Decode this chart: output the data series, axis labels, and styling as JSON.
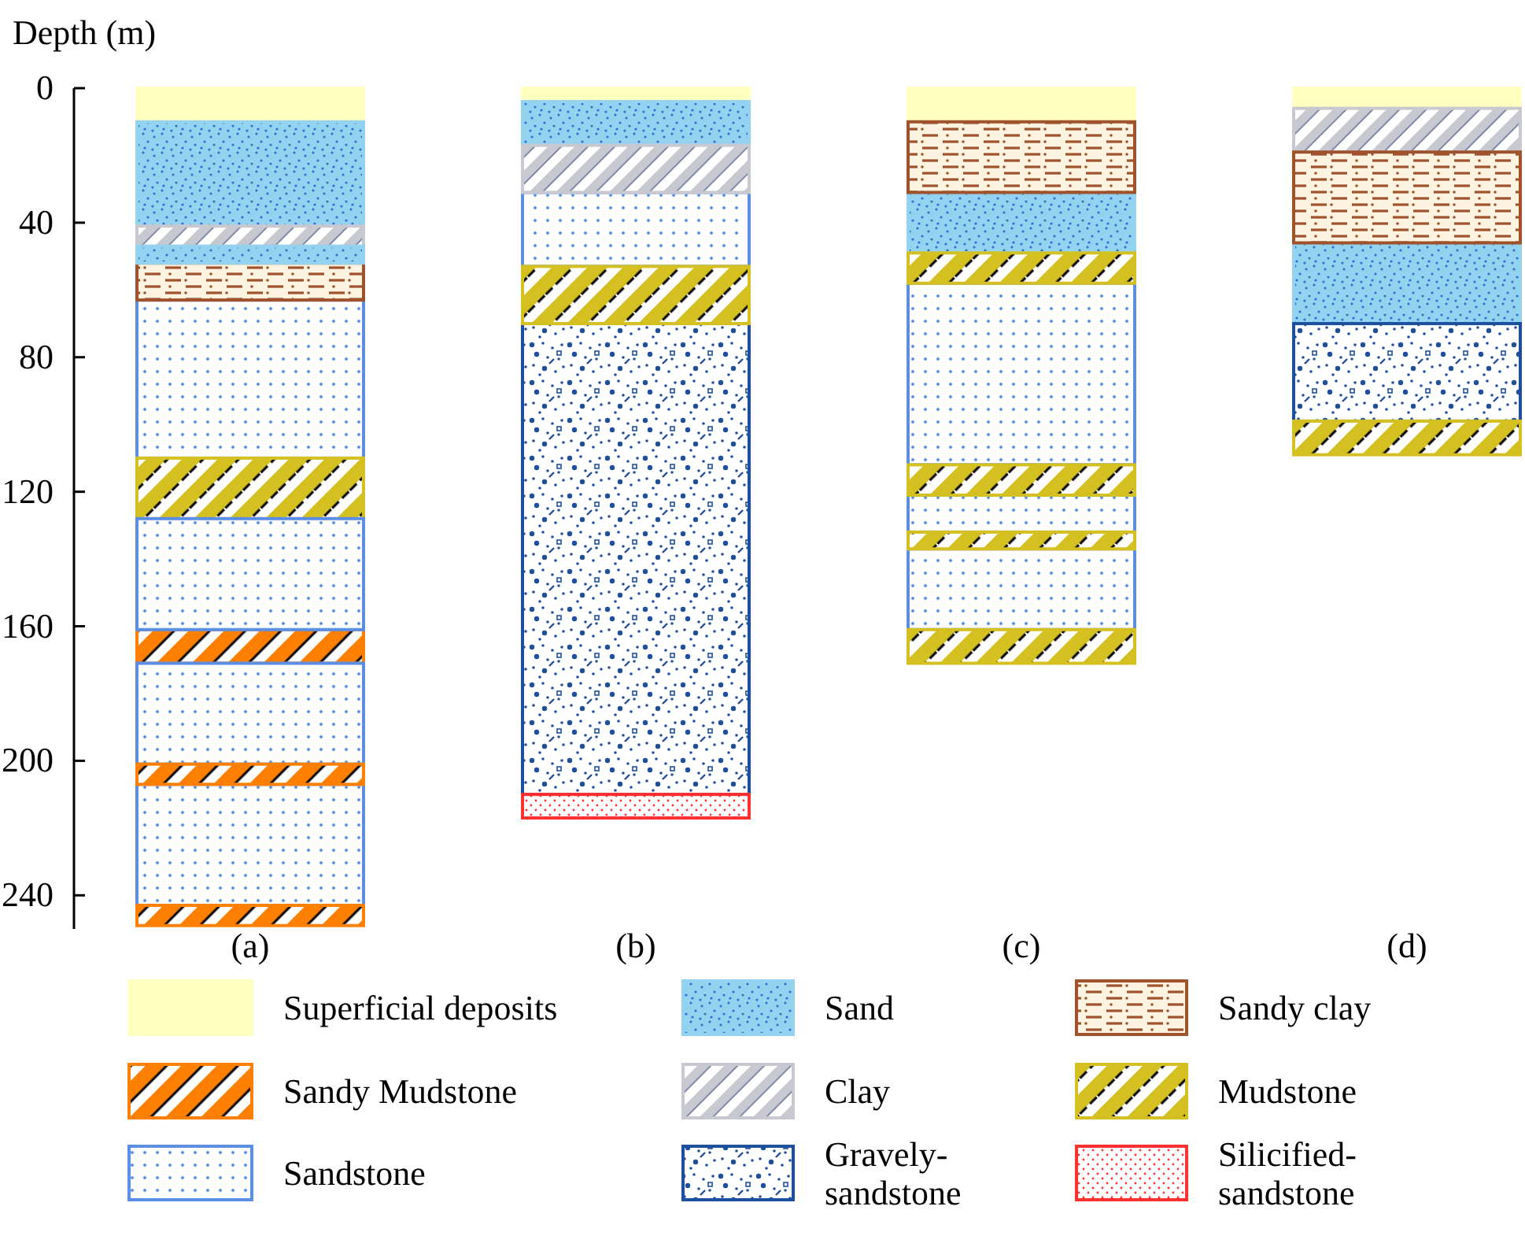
{
  "chart_data": {
    "type": "bar",
    "ylabel": "Depth (m)",
    "categories": [
      "(a)",
      "(b)",
      "(c)",
      "(d)"
    ],
    "ylim": [
      250,
      0
    ],
    "yticks": [
      0,
      40,
      80,
      120,
      160,
      200,
      240
    ],
    "legend": "bottom",
    "series": [
      {
        "name": "Superficial deposits",
        "color": "#ffffc0",
        "base": [
          0,
          0,
          0,
          0
        ],
        "values": [
          10,
          4,
          10,
          6
        ]
      },
      {
        "name": "Sandy Mudstone",
        "color": "#ff8000",
        "base": [
          161,
          null,
          null,
          null
        ],
        "values": [
          10,
          null,
          null,
          null
        ]
      },
      {
        "name": "Sandstone",
        "color": "#5b8ee6",
        "base": [
          63,
          31,
          58,
          null
        ],
        "values": [
          47,
          22,
          54,
          null
        ]
      },
      {
        "name": "Sand",
        "color": "#93d3f0",
        "base": [
          10,
          4,
          31,
          46
        ],
        "values": [
          31,
          13,
          18,
          24
        ]
      },
      {
        "name": "Clay",
        "color": "#c8c8d0",
        "base": [
          41,
          17,
          null,
          6
        ],
        "values": [
          6,
          14,
          null,
          13
        ]
      },
      {
        "name": "Gravely-sandstone",
        "color": "#1d4f9f",
        "base": [
          null,
          70,
          null,
          70
        ],
        "values": [
          null,
          140,
          null,
          29
        ]
      },
      {
        "name": "Sandy clay",
        "color": "#a0522d",
        "base": [
          52,
          null,
          10,
          19
        ],
        "values": [
          11,
          null,
          21,
          27
        ]
      },
      {
        "name": "Mudstone",
        "color": "#d4c020",
        "base": [
          110,
          53,
          49,
          99
        ],
        "values": [
          18,
          17,
          9,
          10
        ]
      },
      {
        "name": "Silicified-sandstone",
        "color": "#ff3030",
        "base": [
          null,
          210,
          null,
          null
        ],
        "values": [
          null,
          7,
          null,
          null
        ]
      },
      {
        "color": "#93d3f0",
        "base": [
          47,
          null,
          null,
          null
        ],
        "values": [
          5,
          null,
          null,
          null
        ]
      },
      {
        "color": "#5b8ee6",
        "base": [
          128,
          null,
          121,
          null
        ],
        "values": [
          33,
          null,
          11,
          null
        ]
      },
      {
        "color": "#5b8ee6",
        "base": [
          171,
          null,
          137,
          null
        ],
        "values": [
          30,
          null,
          24,
          null
        ]
      },
      {
        "color": "#5b8ee6",
        "base": [
          207,
          null,
          null,
          null
        ],
        "values": [
          36,
          null,
          null,
          null
        ]
      },
      {
        "color": "#ff8000",
        "base": [
          201,
          null,
          null,
          null
        ],
        "values": [
          6,
          null,
          null,
          null
        ]
      },
      {
        "color": "#ff8000",
        "base": [
          243,
          null,
          null,
          null
        ],
        "values": [
          6,
          null,
          null,
          null
        ]
      },
      {
        "color": "#d4c020",
        "base": [
          null,
          null,
          112,
          null
        ],
        "values": [
          null,
          null,
          9,
          null
        ]
      },
      {
        "color": "#d4c020",
        "base": [
          null,
          null,
          132,
          null
        ],
        "values": [
          null,
          null,
          5,
          null
        ]
      },
      {
        "color": "#d4c020",
        "base": [
          null,
          null,
          161,
          null
        ],
        "values": [
          null,
          null,
          10,
          null
        ]
      }
    ]
  }
}
